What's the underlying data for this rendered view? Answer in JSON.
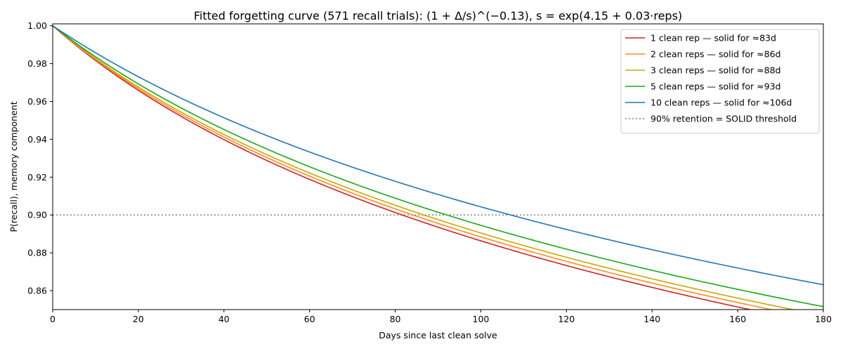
{
  "chart_data": {
    "type": "line",
    "title": "Fitted forgetting curve (571 recall trials): (1 + Δ/s)^(−0.13),  s = exp(4.15 + 0.03·reps)",
    "xlabel": "Days since last clean solve",
    "ylabel": "P(recall), memory component",
    "xlim": [
      0,
      180
    ],
    "ylim": [
      0.85,
      1.001
    ],
    "xticks": [
      0,
      20,
      40,
      60,
      80,
      100,
      120,
      140,
      160,
      180
    ],
    "yticks": [
      0.86,
      0.88,
      0.9,
      0.92,
      0.94,
      0.96,
      0.98,
      1.0
    ],
    "ytick_labels": [
      "0.86",
      "0.88",
      "0.90",
      "0.92",
      "0.94",
      "0.96",
      "0.98",
      "1.00"
    ],
    "model": {
      "exponent": -0.13,
      "intercept": 4.15,
      "slope": 0.03
    },
    "series": [
      {
        "name": "1 clean rep — solid for ≈83d",
        "reps": 1,
        "color": "#d62020"
      },
      {
        "name": "2 clean reps — solid for ≈86d",
        "reps": 2,
        "color": "#ff8c1a"
      },
      {
        "name": "3 clean reps — solid for ≈88d",
        "reps": 3,
        "color": "#c8a800"
      },
      {
        "name": "5 clean reps — solid for ≈93d",
        "reps": 5,
        "color": "#1aa81a"
      },
      {
        "name": "10 clean reps — solid for ≈106d",
        "reps": 10,
        "color": "#1f77b4"
      }
    ],
    "threshold": {
      "y": 0.9,
      "label": "90% retention = SOLID threshold",
      "color": "#808080"
    },
    "grid": false,
    "legend_position": "top-right"
  }
}
